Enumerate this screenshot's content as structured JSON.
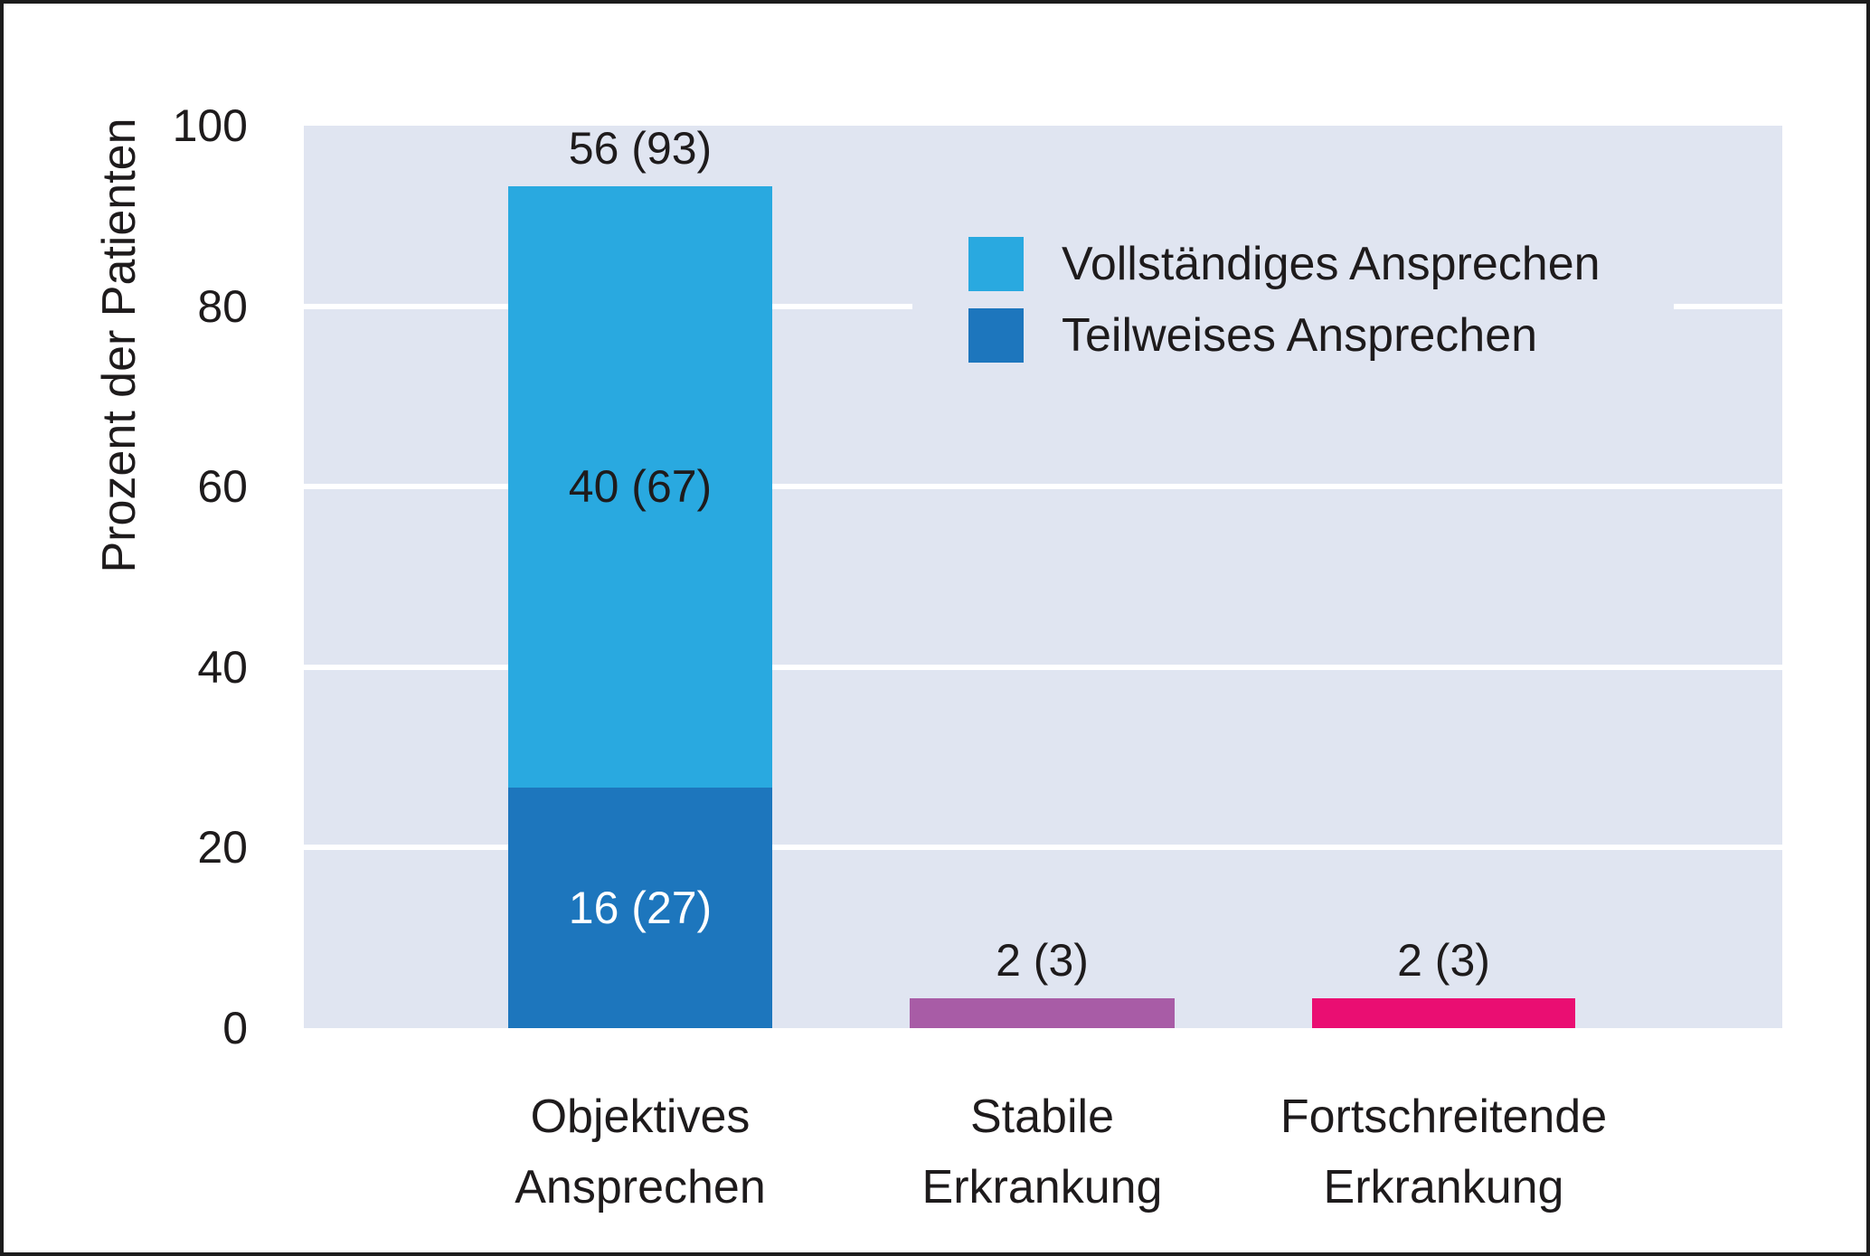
{
  "colors": {
    "plot_bg": "#e0e5f1",
    "gridline": "#ffffff",
    "text": "#1e1b1c",
    "frame": "#1c1c1c",
    "light_blue": "#29a9e0",
    "dark_blue": "#1d76bd",
    "purple": "#a85ca6",
    "pink": "#ea0e72"
  },
  "chart_data": {
    "type": "bar",
    "stacked": true,
    "title": "",
    "xlabel": "",
    "ylabel": "Prozent der Patienten",
    "ylim": [
      0,
      100
    ],
    "yticks": [
      "100",
      "80",
      "60",
      "40",
      "20",
      "0"
    ],
    "gridlines_pct": [
      20,
      40,
      60,
      80
    ],
    "grid": "horizontal white lines on lavender panel",
    "legend_position": "upper right inside plot",
    "legend": [
      {
        "label": "Vollständiges Ansprechen",
        "color": "#29a9e0"
      },
      {
        "label": "Teilweises Ansprechen",
        "color": "#1d76bd"
      }
    ],
    "categories": [
      "Objektives Ansprechen",
      "Stabile Erkrankung",
      "Fortschreitende Erkrankung"
    ],
    "series": [
      {
        "name": "Teilweises Ansprechen",
        "color": "#1d76bd",
        "values": [
          27,
          0,
          0
        ]
      },
      {
        "name": "Vollständiges Ansprechen",
        "color": "#29a9e0",
        "values": [
          67,
          0,
          0
        ]
      },
      {
        "name": "Stabile Erkrankung",
        "color": "#a85ca6",
        "values": [
          0,
          3,
          0
        ]
      },
      {
        "name": "Fortschreitende Erkrankung",
        "color": "#ea0e72",
        "values": [
          0,
          0,
          3
        ]
      }
    ],
    "bars": [
      {
        "category_lines": [
          "Objektives",
          "Ansprechen"
        ],
        "total_label": "56 (93)",
        "segments": [
          {
            "series": "Teilweises Ansprechen",
            "value_label": "16 (27)",
            "pct": 26.7,
            "color": "#1d76bd",
            "text_color": "#ffffff"
          },
          {
            "series": "Vollständiges Ansprechen",
            "value_label": "40 (67)",
            "pct": 66.6,
            "color": "#29a9e0",
            "text_color": "#1e1b1c"
          }
        ]
      },
      {
        "category_lines": [
          "Stabile",
          "Erkrankung"
        ],
        "total_label": "2 (3)",
        "segments": [
          {
            "series": "Stabile Erkrankung",
            "value_label": "",
            "pct": 3.3,
            "color": "#a85ca6",
            "text_color": "#1e1b1c"
          }
        ]
      },
      {
        "category_lines": [
          "Fortschreitende",
          "Erkrankung"
        ],
        "total_label": "2 (3)",
        "segments": [
          {
            "series": "Fortschreitende Erkrankung",
            "value_label": "",
            "pct": 3.3,
            "color": "#ea0e72",
            "text_color": "#1e1b1c"
          }
        ]
      }
    ]
  }
}
